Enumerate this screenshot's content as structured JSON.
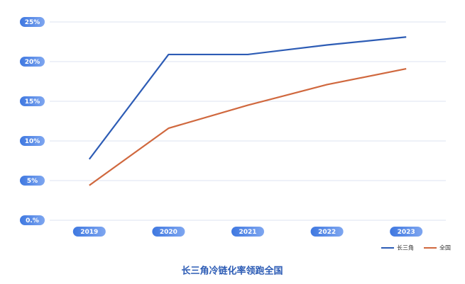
{
  "chart_data": {
    "type": "line",
    "title": "长三角冷链化率领跑全国",
    "categories": [
      "2019",
      "2020",
      "2021",
      "2022",
      "2023"
    ],
    "series": [
      {
        "name": "长三角",
        "color": "#2d5cb5",
        "values": [
          7.7,
          20.9,
          20.9,
          22.1,
          23.1
        ]
      },
      {
        "name": "全国",
        "color": "#d0683e",
        "values": [
          4.4,
          11.6,
          14.5,
          17.1,
          19.1
        ]
      }
    ],
    "ylim": [
      0,
      25
    ],
    "yticks": [
      {
        "value": 0,
        "label": "0.%"
      },
      {
        "value": 5,
        "label": "5%"
      },
      {
        "value": 10,
        "label": "10%"
      },
      {
        "value": 15,
        "label": "15%"
      },
      {
        "value": 20,
        "label": "20%"
      },
      {
        "value": 25,
        "label": "25%"
      }
    ],
    "grid": true,
    "legend": "bottom-right"
  }
}
